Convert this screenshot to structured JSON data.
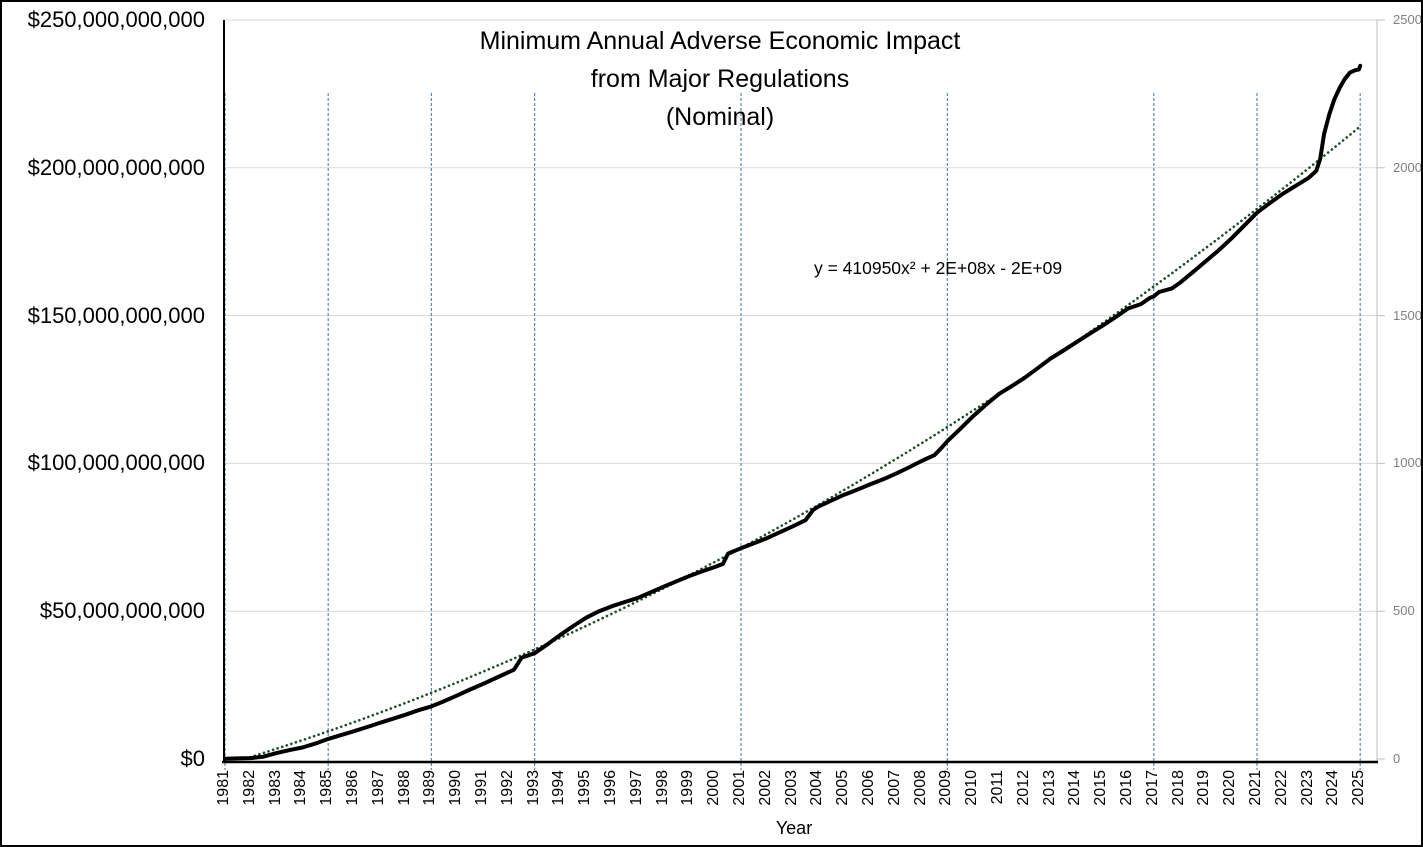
{
  "chart_data": {
    "type": "line",
    "title_lines": [
      "Minimum Annual Adverse Economic Impact",
      "from Major Regulations",
      "(Nominal)"
    ],
    "xlabel": "Year",
    "x_tick_labels": [
      "1981",
      "1982",
      "1983",
      "1984",
      "1985",
      "1986",
      "1987",
      "1988",
      "1989",
      "1990",
      "1991",
      "1992",
      "1993",
      "1994",
      "1995",
      "1996",
      "1997",
      "1998",
      "1999",
      "2000",
      "2001",
      "2002",
      "2003",
      "2004",
      "2005",
      "2006",
      "2007",
      "2008",
      "2009",
      "2010",
      "2011",
      "2012",
      "2013",
      "2014",
      "2015",
      "2016",
      "2017",
      "2018",
      "2019",
      "2020",
      "2021",
      "2022",
      "2023",
      "2024",
      "2025"
    ],
    "y_axis_left": {
      "tick_labels_top_to_bottom": [
        "$250,000,000,000",
        "$200,000,000,000",
        "$150,000,000,000",
        "$100,000,000,000",
        "$50,000,000,000",
        "$0"
      ],
      "range_billions": [
        0,
        250
      ]
    },
    "y_axis_right": {
      "tick_labels_top_to_bottom": [
        "2500",
        "2000",
        "1500",
        "1000",
        "500",
        "0"
      ],
      "range": [
        0,
        2500
      ]
    },
    "axis_ranges": {
      "x_years": [
        1981,
        2025
      ]
    },
    "grid": {
      "horizontal_gridlines_billions": [
        250,
        200,
        150,
        100,
        50
      ],
      "vertical_dashed_years": [
        1981,
        1985,
        1989,
        1993,
        2001,
        2009,
        2017,
        2021,
        2025
      ]
    },
    "series": [
      {
        "name": "minimum-annual-adverse-economic-impact-nominal",
        "type": "line",
        "color": "#000000",
        "units": "billions USD (cumulative, nominal)",
        "points_year_billionUSD": [
          [
            1981,
            0.1
          ],
          [
            1981.5,
            0.2
          ],
          [
            1982,
            0.3
          ],
          [
            1982.5,
            0.8
          ],
          [
            1983,
            2
          ],
          [
            1983.5,
            3
          ],
          [
            1984,
            3.9
          ],
          [
            1984.5,
            5.2
          ],
          [
            1985,
            6.8
          ],
          [
            1985.5,
            8.1
          ],
          [
            1986,
            9.4
          ],
          [
            1986.5,
            10.8
          ],
          [
            1987,
            12.2
          ],
          [
            1987.5,
            13.6
          ],
          [
            1988,
            15
          ],
          [
            1988.5,
            16.5
          ],
          [
            1989,
            17.8
          ],
          [
            1989.5,
            19.6
          ],
          [
            1990,
            21.5
          ],
          [
            1990.5,
            23.5
          ],
          [
            1991,
            25.4
          ],
          [
            1991.5,
            27.4
          ],
          [
            1992,
            29.4
          ],
          [
            1992.2,
            30.2
          ],
          [
            1992.5,
            34.3
          ],
          [
            1993,
            35.8
          ],
          [
            1993.5,
            38.8
          ],
          [
            1994,
            42
          ],
          [
            1994.5,
            45
          ],
          [
            1995,
            47.8
          ],
          [
            1995.5,
            50
          ],
          [
            1996,
            51.7
          ],
          [
            1996.5,
            53.1
          ],
          [
            1997,
            54.5
          ],
          [
            1997.5,
            56.4
          ],
          [
            1998,
            58.3
          ],
          [
            1998.5,
            60.1
          ],
          [
            1999,
            61.9
          ],
          [
            1999.5,
            63.5
          ],
          [
            2000,
            65
          ],
          [
            2000.3,
            66
          ],
          [
            2000.5,
            69.5
          ],
          [
            2001,
            71.3
          ],
          [
            2001.5,
            73
          ],
          [
            2002,
            74.7
          ],
          [
            2002.5,
            76.7
          ],
          [
            2003,
            78.7
          ],
          [
            2003.5,
            80.8
          ],
          [
            2003.8,
            84.3
          ],
          [
            2004,
            85.4
          ],
          [
            2004.5,
            87.4
          ],
          [
            2005,
            89.4
          ],
          [
            2005.5,
            91.1
          ],
          [
            2006,
            92.9
          ],
          [
            2006.5,
            94.6
          ],
          [
            2007,
            96.5
          ],
          [
            2007.5,
            98.6
          ],
          [
            2008,
            100.8
          ],
          [
            2008.5,
            102.8
          ],
          [
            2008.8,
            105.5
          ],
          [
            2009,
            107.5
          ],
          [
            2009.5,
            111.7
          ],
          [
            2010,
            116
          ],
          [
            2010.5,
            119.9
          ],
          [
            2011,
            123.5
          ],
          [
            2011.5,
            126.2
          ],
          [
            2012,
            129
          ],
          [
            2012.5,
            132.2
          ],
          [
            2013,
            135.5
          ],
          [
            2013.5,
            138.2
          ],
          [
            2014,
            141
          ],
          [
            2014.5,
            143.8
          ],
          [
            2015,
            146.5
          ],
          [
            2015.5,
            149.4
          ],
          [
            2016,
            152.4
          ],
          [
            2016.5,
            153.9
          ],
          [
            2016.85,
            156
          ],
          [
            2017,
            156.5
          ],
          [
            2017.2,
            158
          ],
          [
            2017.7,
            159.2
          ],
          [
            2018,
            161
          ],
          [
            2018.5,
            164.6
          ],
          [
            2019,
            168.3
          ],
          [
            2019.5,
            172
          ],
          [
            2020,
            176
          ],
          [
            2020.5,
            180.4
          ],
          [
            2021,
            184.8
          ],
          [
            2021.5,
            188.1
          ],
          [
            2022,
            191.2
          ],
          [
            2022.5,
            193.9
          ],
          [
            2023,
            196.6
          ],
          [
            2023.3,
            199
          ],
          [
            2023.45,
            203
          ],
          [
            2023.6,
            211.5
          ],
          [
            2023.8,
            218
          ],
          [
            2024,
            223.2
          ],
          [
            2024.2,
            227
          ],
          [
            2024.4,
            230
          ],
          [
            2024.6,
            232.2
          ],
          [
            2024.8,
            233
          ],
          [
            2024.95,
            233.3
          ],
          [
            2025,
            234.5
          ]
        ]
      }
    ],
    "trendline": {
      "equation_label": "y = 410950x² + 2E+08x - 2E+09",
      "style": "dotted",
      "color": "#1e4d2b",
      "draw_quadratic_billions": {
        "a": 100,
        "b": 116,
        "c": -2,
        "t_basis": "(year-1981)/44"
      }
    },
    "legend": "none"
  },
  "colors": {
    "background": "#ffffff",
    "axis_line": "#000000",
    "gridline": "#d9d9d9",
    "vertical_dashed_line": "#6488a0",
    "right_axis_line": "#bfbfbf",
    "right_axis_label": "#7f7f7f",
    "series_line": "#000000",
    "trendline": "#1e4d2b"
  }
}
